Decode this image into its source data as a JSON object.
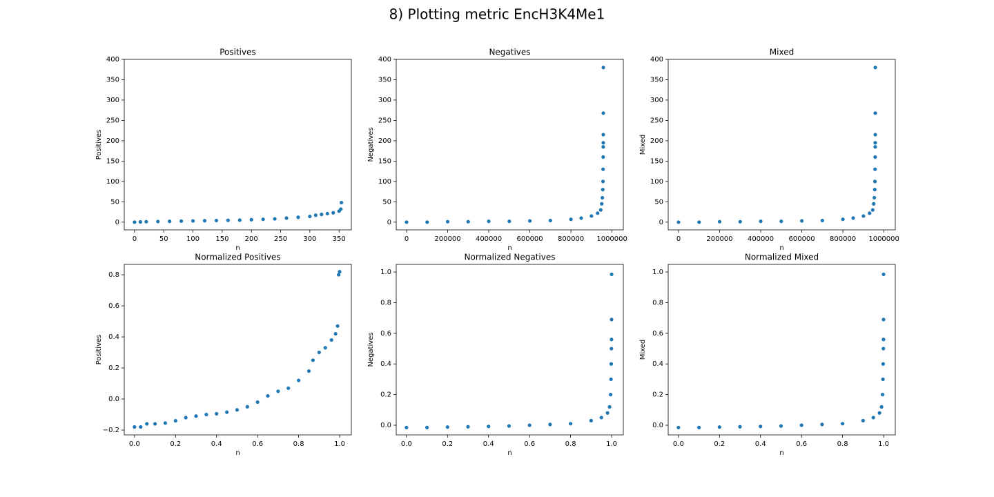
{
  "title": "8) Plotting metric EncH3K4Me1",
  "chart_data": [
    {
      "type": "scatter",
      "title": "Positives",
      "xlabel": "n",
      "ylabel": "Positives",
      "color": "#1f77b4",
      "xlim": [
        -17.6,
        371
      ],
      "ylim": [
        -19,
        400
      ],
      "xticks": [
        0,
        50,
        100,
        150,
        200,
        250,
        300,
        350
      ],
      "yticks": [
        0,
        50,
        100,
        150,
        200,
        250,
        300,
        350,
        400
      ],
      "x": [
        0,
        10,
        20,
        40,
        60,
        80,
        100,
        120,
        140,
        160,
        180,
        200,
        220,
        240,
        260,
        280,
        300,
        310,
        320,
        330,
        340,
        350,
        353,
        354
      ],
      "values": [
        0,
        0.5,
        1,
        1.5,
        2,
        2.5,
        3,
        3.5,
        4,
        4.5,
        5,
        6,
        7,
        8,
        10,
        12,
        14,
        17,
        19,
        21,
        23,
        27,
        32,
        48
      ]
    },
    {
      "type": "scatter",
      "title": "Negatives",
      "xlabel": "n",
      "ylabel": "Negatives",
      "color": "#1f77b4",
      "xlim": [
        -50400,
        1055000
      ],
      "ylim": [
        -19,
        400
      ],
      "xticks": [
        0,
        200000,
        400000,
        600000,
        800000,
        1000000
      ],
      "yticks": [
        0,
        50,
        100,
        150,
        200,
        250,
        300,
        350,
        400
      ],
      "x": [
        0,
        100000,
        200000,
        300000,
        400000,
        500000,
        600000,
        700000,
        800000,
        850000,
        900000,
        930000,
        945000,
        950000,
        953000,
        955000,
        956000,
        956500,
        957000,
        957200,
        957400,
        957500,
        957600,
        957700
      ],
      "values": [
        0,
        0,
        1,
        1,
        2,
        2,
        3,
        4,
        7,
        10,
        15,
        22,
        30,
        45,
        60,
        80,
        100,
        130,
        160,
        185,
        195,
        215,
        268,
        380
      ]
    },
    {
      "type": "scatter",
      "title": "Mixed",
      "xlabel": "n",
      "ylabel": "Mixed",
      "color": "#1f77b4",
      "xlim": [
        -50400,
        1055000
      ],
      "ylim": [
        -19,
        400
      ],
      "xticks": [
        0,
        200000,
        400000,
        600000,
        800000,
        1000000
      ],
      "yticks": [
        0,
        50,
        100,
        150,
        200,
        250,
        300,
        350,
        400
      ],
      "x": [
        0,
        100000,
        200000,
        300000,
        400000,
        500000,
        600000,
        700000,
        800000,
        850000,
        900000,
        930000,
        945000,
        950000,
        953000,
        955000,
        956000,
        956500,
        957000,
        957200,
        957400,
        957500,
        957600,
        957700
      ],
      "values": [
        0,
        0,
        1,
        1,
        2,
        2,
        3,
        4,
        7,
        10,
        15,
        22,
        30,
        45,
        60,
        80,
        100,
        130,
        160,
        185,
        195,
        215,
        268,
        380
      ]
    },
    {
      "type": "scatter",
      "title": "Normalized Positives",
      "xlabel": "n",
      "ylabel": "Positives",
      "color": "#1f77b4",
      "xlim": [
        -0.05,
        1.057
      ],
      "ylim": [
        -0.231,
        0.867
      ],
      "xticks": [
        {
          "value": 0,
          "label": "0.0"
        },
        0.2,
        0.4,
        0.6,
        0.8,
        {
          "value": 1,
          "label": "1.0"
        }
      ],
      "yticks": [
        {
          "value": -0.2,
          "label": "−0.2"
        },
        {
          "value": 0,
          "label": "0.0"
        },
        0.2,
        0.4,
        0.6,
        0.8
      ],
      "x": [
        0,
        0.03,
        0.06,
        0.1,
        0.15,
        0.2,
        0.25,
        0.3,
        0.35,
        0.4,
        0.45,
        0.5,
        0.55,
        0.6,
        0.65,
        0.7,
        0.75,
        0.8,
        0.85,
        0.87,
        0.9,
        0.93,
        0.96,
        0.98,
        0.99,
        0.995,
        1.0
      ],
      "values": [
        -0.18,
        -0.18,
        -0.16,
        -0.16,
        -0.155,
        -0.14,
        -0.12,
        -0.11,
        -0.1,
        -0.095,
        -0.085,
        -0.07,
        -0.05,
        -0.02,
        0.02,
        0.05,
        0.07,
        0.12,
        0.18,
        0.25,
        0.3,
        0.33,
        0.38,
        0.42,
        0.47,
        0.8,
        0.82
      ]
    },
    {
      "type": "scatter",
      "title": "Normalized Negatives",
      "xlabel": "n",
      "ylabel": "Negatives",
      "color": "#1f77b4",
      "xlim": [
        -0.05,
        1.057
      ],
      "ylim": [
        -0.063,
        1.05
      ],
      "xticks": [
        {
          "value": 0,
          "label": "0.0"
        },
        0.2,
        0.4,
        0.6,
        0.8,
        {
          "value": 1,
          "label": "1.0"
        }
      ],
      "yticks": [
        {
          "value": 0,
          "label": "0.0"
        },
        0.2,
        0.4,
        0.6,
        0.8,
        {
          "value": 1,
          "label": "1.0"
        }
      ],
      "x": [
        0,
        0.1,
        0.2,
        0.3,
        0.4,
        0.5,
        0.6,
        0.7,
        0.8,
        0.9,
        0.95,
        0.98,
        0.99,
        0.995,
        0.997,
        0.998,
        0.999,
        0.9995,
        0.9998,
        1.0
      ],
      "values": [
        -0.015,
        -0.015,
        -0.012,
        -0.01,
        -0.008,
        -0.005,
        0,
        0.005,
        0.01,
        0.03,
        0.05,
        0.08,
        0.12,
        0.2,
        0.3,
        0.4,
        0.5,
        0.56,
        0.69,
        0.985
      ]
    },
    {
      "type": "scatter",
      "title": "Normalized Mixed",
      "xlabel": "n",
      "ylabel": "Mixed",
      "color": "#1f77b4",
      "xlim": [
        -0.05,
        1.057
      ],
      "ylim": [
        -0.063,
        1.05
      ],
      "xticks": [
        {
          "value": 0,
          "label": "0.0"
        },
        0.2,
        0.4,
        0.6,
        0.8,
        {
          "value": 1,
          "label": "1.0"
        }
      ],
      "yticks": [
        {
          "value": 0,
          "label": "0.0"
        },
        0.2,
        0.4,
        0.6,
        0.8,
        {
          "value": 1,
          "label": "1.0"
        }
      ],
      "x": [
        0,
        0.1,
        0.2,
        0.3,
        0.4,
        0.5,
        0.6,
        0.7,
        0.8,
        0.9,
        0.95,
        0.98,
        0.99,
        0.995,
        0.997,
        0.998,
        0.999,
        0.9995,
        0.9998,
        1.0
      ],
      "values": [
        -0.015,
        -0.015,
        -0.012,
        -0.01,
        -0.008,
        -0.005,
        0,
        0.005,
        0.01,
        0.03,
        0.05,
        0.08,
        0.12,
        0.2,
        0.3,
        0.4,
        0.5,
        0.56,
        0.69,
        0.985
      ]
    }
  ]
}
